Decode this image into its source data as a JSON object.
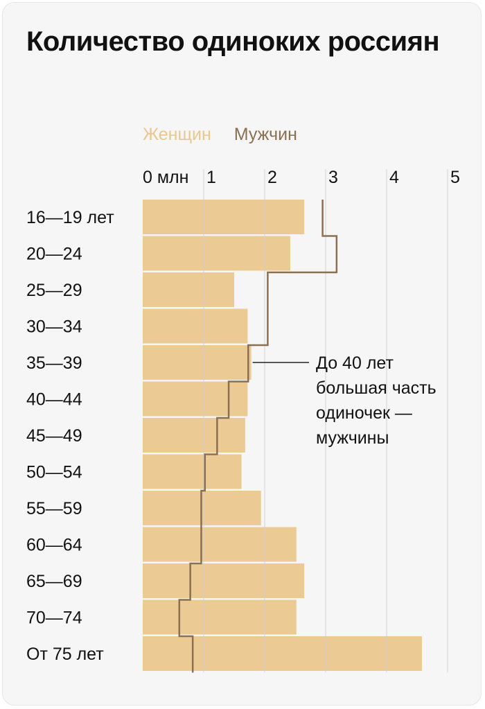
{
  "title": "Количество одиноких россиян",
  "legend": {
    "women_label": "Женщин",
    "men_label": "Мужчин"
  },
  "colors": {
    "women": "#ebca94",
    "women_legend": "#e8c891",
    "men": "#8a7050",
    "grid": "#d0d0d0",
    "background": "#f6f6f6"
  },
  "chart_data": {
    "type": "bar",
    "orientation": "horizontal",
    "xlim": [
      0,
      5
    ],
    "x_ticks": [
      0,
      1,
      2,
      3,
      4,
      5
    ],
    "x_tick_labels": [
      "0 млн",
      "1",
      "2",
      "3",
      "4",
      "5"
    ],
    "categories": [
      "16—19 лет",
      "20—24",
      "25—29",
      "30—34",
      "35—39",
      "40—44",
      "45—49",
      "50—54",
      "55—59",
      "60—64",
      "65—69",
      "70—74",
      "От 75 лет"
    ],
    "series": [
      {
        "name": "Женщин",
        "style": "bar",
        "values": [
          2.65,
          2.42,
          1.5,
          1.72,
          1.78,
          1.72,
          1.68,
          1.62,
          1.94,
          2.52,
          2.65,
          2.52,
          4.58
        ]
      },
      {
        "name": "Мужчин",
        "style": "step-line",
        "values": [
          2.95,
          3.18,
          2.05,
          2.05,
          1.73,
          1.41,
          1.22,
          1.02,
          0.96,
          0.96,
          0.78,
          0.6,
          0.82
        ]
      }
    ],
    "annotation": {
      "lines": [
        "До 40 лет",
        "большая часть",
        "одиночек —",
        "мужчины"
      ],
      "category": "35—39"
    },
    "grid": true,
    "legend_position": "top-left"
  }
}
